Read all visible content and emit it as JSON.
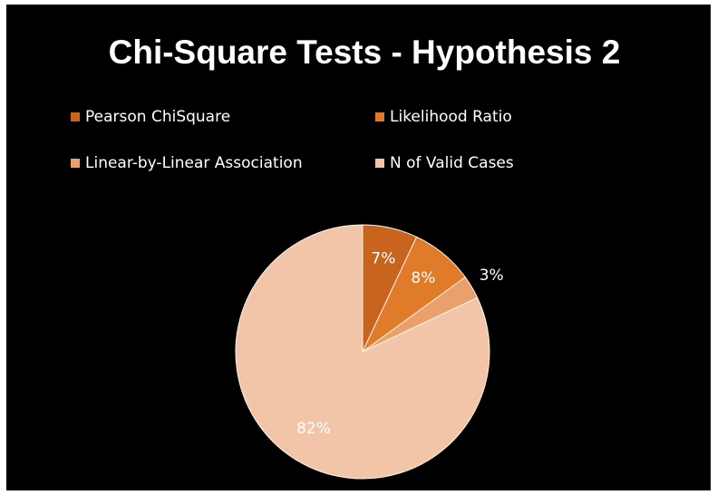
{
  "chart_data": {
    "type": "pie",
    "title": "Chi-Square Tests - Hypothesis 2",
    "categories": [
      "Pearson ChiSquare",
      "Likelihood Ratio",
      "Linear-by-Linear Association",
      "N of Valid Cases"
    ],
    "values": [
      7,
      8,
      3,
      82
    ],
    "value_labels": [
      "7%",
      "8%",
      "3%",
      "82%"
    ],
    "colors": [
      "#c8641e",
      "#e07b2a",
      "#e9a06a",
      "#f3c5a8"
    ],
    "legend": "top"
  }
}
